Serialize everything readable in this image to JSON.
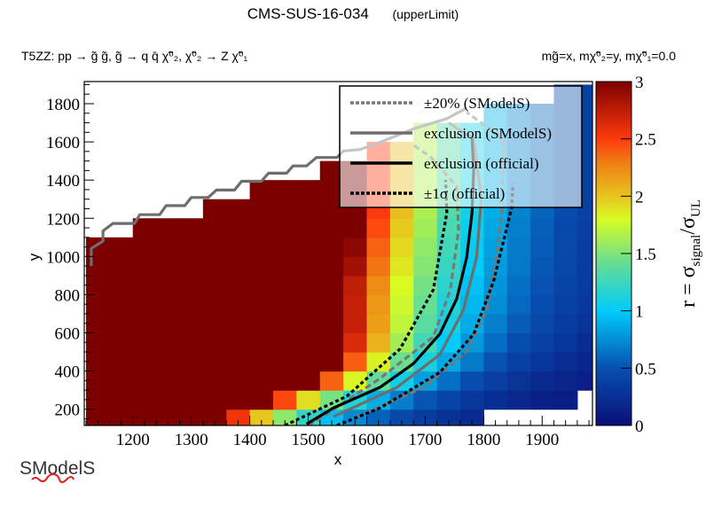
{
  "header": {
    "title": "CMS-SUS-16-034",
    "subtitle_tag": "(upperLimit)",
    "process": "T5ZZ: pp  → g̃ g̃, g̃  → q q̄ χ̃⁰₂, χ̃⁰₂ → Z χ̃⁰₁",
    "masses": "mg̃=x, mχ̃⁰₂=y, mχ̃⁰₁=0.0"
  },
  "logo": {
    "text": "SModelS"
  },
  "chart_data": {
    "type": "heatmap",
    "title": "CMS-SUS-16-034    (upperLimit)",
    "xlabel": "x",
    "ylabel": "y",
    "xlim": [
      1117,
      1986
    ],
    "ylim": [
      115,
      1916
    ],
    "xticks": [
      1200,
      1300,
      1400,
      1500,
      1600,
      1700,
      1800,
      1900
    ],
    "yticks": [
      200,
      400,
      600,
      800,
      1000,
      1200,
      1400,
      1600,
      1800
    ],
    "grid": false,
    "colorbar": {
      "label_parts": [
        "r = σ",
        "signal",
        "/σ",
        "UL"
      ],
      "range": [
        0,
        3
      ],
      "ticks": [
        "0",
        "0.5",
        "1",
        "1.5",
        "2",
        "2.5",
        "3"
      ],
      "colormap": [
        [
          0.0,
          "#0b0e78"
        ],
        [
          0.5,
          "#0750b0"
        ],
        [
          1.0,
          "#00ccfa"
        ],
        [
          1.4,
          "#62dc98"
        ],
        [
          1.8,
          "#d8fc22"
        ],
        [
          2.0,
          "#e8c41e"
        ],
        [
          2.3,
          "#f07c14"
        ],
        [
          2.5,
          "#ff3a0c"
        ],
        [
          3.0,
          "#7c0000"
        ]
      ]
    },
    "x": [
      1140,
      1180,
      1220,
      1260,
      1300,
      1340,
      1380,
      1420,
      1460,
      1500,
      1540,
      1580,
      1620,
      1660,
      1700,
      1740,
      1780,
      1820,
      1860,
      1900,
      1940,
      1980
    ],
    "y": [
      150,
      250,
      350,
      450,
      550,
      650,
      750,
      850,
      950,
      1050,
      1150,
      1250,
      1350,
      1450,
      1550,
      1650,
      1750,
      1850
    ],
    "z": [
      [
        3,
        3,
        3,
        3,
        3,
        3,
        2.55,
        1.99,
        1.55,
        1.21,
        0.94,
        0.73,
        0.57,
        0.44,
        0.35,
        0.27,
        0.21,
        null,
        null,
        null,
        null,
        null
      ],
      [
        3,
        3,
        3,
        3,
        3,
        3,
        3,
        3,
        2.46,
        1.91,
        1.47,
        1.14,
        0.88,
        0.68,
        0.52,
        0.41,
        0.31,
        0.24,
        0.19,
        0.14,
        0.11,
        null
      ],
      [
        3,
        3,
        3,
        3,
        3,
        3,
        3,
        3,
        3,
        3,
        2.38,
        1.82,
        1.4,
        1.07,
        0.82,
        0.63,
        0.48,
        0.37,
        0.28,
        0.22,
        0.17,
        0.13
      ],
      [
        3,
        3,
        3,
        3,
        3,
        3,
        3,
        3,
        3,
        3,
        3,
        2.39,
        1.84,
        1.43,
        1.1,
        0.85,
        0.66,
        0.51,
        0.39,
        0.3,
        0.23,
        0.18
      ],
      [
        3,
        3,
        3,
        3,
        3,
        3,
        3,
        3,
        3,
        3,
        3,
        2.64,
        2.07,
        1.62,
        1.27,
        1.0,
        0.79,
        0.62,
        0.48,
        0.38,
        0.3,
        0.23
      ],
      [
        3,
        3,
        3,
        3,
        3,
        3,
        3,
        3,
        3,
        3,
        3,
        2.72,
        2.16,
        1.72,
        1.37,
        1.09,
        0.87,
        0.69,
        0.55,
        0.44,
        0.35,
        0.28
      ],
      [
        3,
        3,
        3,
        3,
        3,
        3,
        3,
        3,
        3,
        3,
        3,
        2.72,
        2.19,
        1.76,
        1.42,
        1.14,
        0.92,
        0.74,
        0.6,
        0.48,
        0.39,
        0.31
      ],
      [
        3,
        3,
        3,
        3,
        3,
        3,
        3,
        3,
        3,
        3,
        3,
        2.75,
        2.23,
        1.8,
        1.46,
        1.18,
        0.96,
        0.78,
        0.63,
        0.51,
        0.41,
        0.34
      ],
      [
        3,
        3,
        3,
        3,
        3,
        3,
        3,
        3,
        3,
        3,
        3,
        2.86,
        2.32,
        1.88,
        1.52,
        1.23,
        1.0,
        0.81,
        0.66,
        0.53,
        0.43,
        0.35
      ],
      [
        3,
        3,
        3,
        3,
        3,
        3,
        3,
        3,
        3,
        3,
        3,
        2.94,
        2.38,
        1.93,
        1.56,
        1.27,
        1.03,
        0.83,
        0.67,
        0.55,
        0.44,
        0.36
      ],
      [
        null,
        null,
        3,
        3,
        3,
        3,
        3,
        3,
        3,
        3,
        3,
        3,
        2.45,
        1.98,
        1.61,
        1.3,
        1.05,
        0.85,
        0.69,
        0.56,
        0.45,
        0.37
      ],
      [
        null,
        null,
        null,
        null,
        null,
        3,
        3,
        3,
        3,
        3,
        3,
        3,
        2.51,
        2.03,
        1.65,
        1.34,
        1.08,
        0.88,
        0.71,
        0.58,
        0.47,
        0.38
      ],
      [
        null,
        null,
        null,
        null,
        null,
        null,
        null,
        3,
        3,
        3,
        3,
        3,
        2.51,
        2.03,
        1.65,
        1.34,
        1.08,
        0.88,
        0.71,
        0.58,
        0.47,
        0.38
      ],
      [
        null,
        null,
        null,
        null,
        null,
        null,
        null,
        null,
        null,
        null,
        3,
        3,
        2.51,
        2.03,
        1.65,
        1.34,
        1.08,
        0.88,
        0.71,
        0.58,
        0.47,
        0.38
      ],
      [
        null,
        null,
        null,
        null,
        null,
        null,
        null,
        null,
        null,
        null,
        null,
        null,
        2.51,
        2.03,
        1.65,
        1.34,
        1.08,
        0.88,
        0.71,
        0.58,
        0.47,
        0.38
      ],
      [
        null,
        null,
        null,
        null,
        null,
        null,
        null,
        null,
        null,
        null,
        null,
        null,
        null,
        null,
        1.65,
        1.34,
        1.08,
        0.88,
        0.71,
        0.58,
        0.47,
        0.38
      ],
      [
        null,
        null,
        null,
        null,
        null,
        null,
        null,
        null,
        null,
        null,
        null,
        null,
        null,
        null,
        null,
        null,
        null,
        0.88,
        0.71,
        0.58,
        0.47,
        0.38
      ],
      [
        null,
        null,
        null,
        null,
        null,
        null,
        null,
        null,
        null,
        null,
        null,
        null,
        null,
        null,
        null,
        null,
        null,
        null,
        null,
        null,
        0.47,
        0.38
      ]
    ],
    "contours": [
      {
        "name": "±20% (SModelS)",
        "color": "#777777",
        "style": "dashed",
        "segments": [
          [
            [
              1500,
              115
            ],
            [
              1531,
              174
            ],
            [
              1623,
              362
            ],
            [
              1714,
              579
            ],
            [
              1743,
              826
            ],
            [
              1757,
              1136
            ],
            [
              1754,
              1367
            ],
            [
              1709,
              1521
            ],
            [
              1680,
              1583
            ]
          ],
          [
            [
              1582,
              161
            ],
            [
              1697,
              313
            ],
            [
              1771,
              502
            ],
            [
              1805,
              717
            ],
            [
              1822,
              996
            ],
            [
              1831,
              1228
            ],
            [
              1834,
              1614
            ],
            [
              1771,
              1756
            ]
          ]
        ]
      },
      {
        "name": "exclusion (SModelS)",
        "color": "#6e6e6e",
        "style": "solid",
        "segments": [
          [
            [
              1543,
              161
            ],
            [
              1651,
              313
            ],
            [
              1725,
              486
            ],
            [
              1765,
              717
            ],
            [
              1788,
              996
            ],
            [
              1796,
              1305
            ],
            [
              1783,
              1614
            ],
            [
              1740,
              1700
            ]
          ],
          [
            [
              1129,
              949
            ],
            [
              1129,
              1042
            ],
            [
              1149,
              1080
            ],
            [
              1149,
              1134
            ],
            [
              1166,
              1173
            ],
            [
              1203,
              1173
            ],
            [
              1212,
              1219
            ],
            [
              1246,
              1219
            ],
            [
              1257,
              1266
            ],
            [
              1289,
              1266
            ],
            [
              1300,
              1309
            ],
            [
              1329,
              1309
            ],
            [
              1343,
              1348
            ],
            [
              1374,
              1348
            ],
            [
              1386,
              1394
            ],
            [
              1420,
              1394
            ],
            [
              1432,
              1436
            ],
            [
              1463,
              1436
            ],
            [
              1474,
              1474
            ],
            [
              1497,
              1474
            ],
            [
              1514,
              1518
            ],
            [
              1549,
              1518
            ],
            [
              1560,
              1552
            ],
            [
              1588,
              1560
            ],
            [
              1623,
              1598
            ],
            [
              1680,
              1668
            ],
            [
              1737,
              1722
            ],
            [
              1771,
              1777
            ]
          ]
        ]
      },
      {
        "name": "exclusion (official)",
        "color": "#000000",
        "style": "solid",
        "segments": [
          [
            [
              1497,
              122
            ],
            [
              1543,
              207
            ],
            [
              1623,
              315
            ],
            [
              1680,
              439
            ],
            [
              1725,
              594
            ],
            [
              1754,
              779
            ],
            [
              1771,
              996
            ],
            [
              1780,
              1228
            ],
            [
              1783,
              1460
            ],
            [
              1780,
              1620
            ]
          ]
        ]
      },
      {
        "name": "±1σ (official)",
        "color": "#000000",
        "style": "dotted",
        "segments": [
          [
            [
              1460,
              115
            ],
            [
              1566,
              268
            ],
            [
              1657,
              516
            ],
            [
              1714,
              826
            ],
            [
              1737,
              1228
            ],
            [
              1735,
              1400
            ]
          ],
          [
            [
              1549,
              115
            ],
            [
              1623,
              207
            ],
            [
              1725,
              393
            ],
            [
              1783,
              594
            ],
            [
              1817,
              872
            ],
            [
              1837,
              1120
            ],
            [
              1848,
              1259
            ],
            [
              1850,
              1380
            ]
          ]
        ]
      }
    ],
    "legend": {
      "position": "top-right",
      "entries": [
        "±20% (SModelS)",
        "exclusion (SModelS)",
        "exclusion (official)",
        "±1σ (official)"
      ]
    }
  }
}
